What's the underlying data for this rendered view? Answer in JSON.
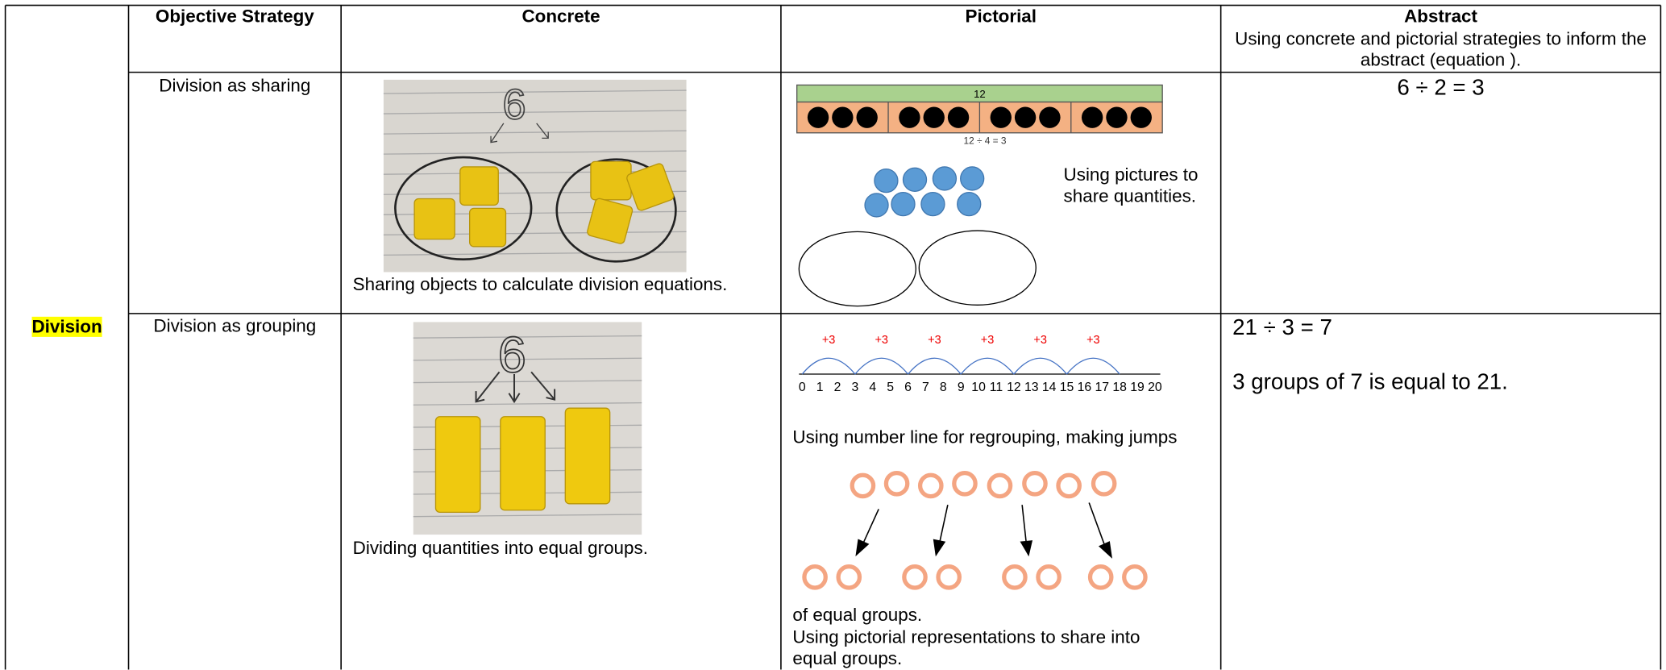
{
  "table": {
    "section_label": "Division",
    "columns": [
      {
        "title": "Objective Strategy"
      },
      {
        "title": "Concrete"
      },
      {
        "title": "Pictorial"
      },
      {
        "title": "Abstract",
        "subtitle": "Using concrete and pictorial strategies to inform the abstract (equation )."
      }
    ],
    "rows": [
      {
        "strategy": "Division as sharing",
        "concrete": {
          "photo_digit": "6",
          "caption": "Sharing objects to calculate division equations."
        },
        "pictorial": {
          "bar_total": "12",
          "bar_equation": "12 ÷ 4 = 3",
          "caption": "Using pictures to share quantities."
        },
        "abstract": {
          "equation": "6 ÷ 2 = 3"
        }
      },
      {
        "strategy": "Division as grouping",
        "concrete": {
          "photo_digit": "6",
          "caption": "Dividing quantities into equal groups."
        },
        "pictorial": {
          "jump_labels": [
            "+3",
            "+3",
            "+3",
            "+3",
            "+3",
            "+3"
          ],
          "number_line": [
            0,
            1,
            2,
            3,
            4,
            5,
            6,
            7,
            8,
            9,
            10,
            11,
            12,
            13,
            14,
            15,
            16,
            17,
            18,
            19,
            20
          ],
          "caption_1": "Using number line for regrouping, making jumps",
          "caption_2": "of equal groups.",
          "caption_3": "Using pictorial representations to share into equal groups."
        },
        "abstract": {
          "equation": "21 ÷ 3 = 7",
          "sentence": "3 groups of 7 is equal to 21."
        }
      }
    ]
  }
}
